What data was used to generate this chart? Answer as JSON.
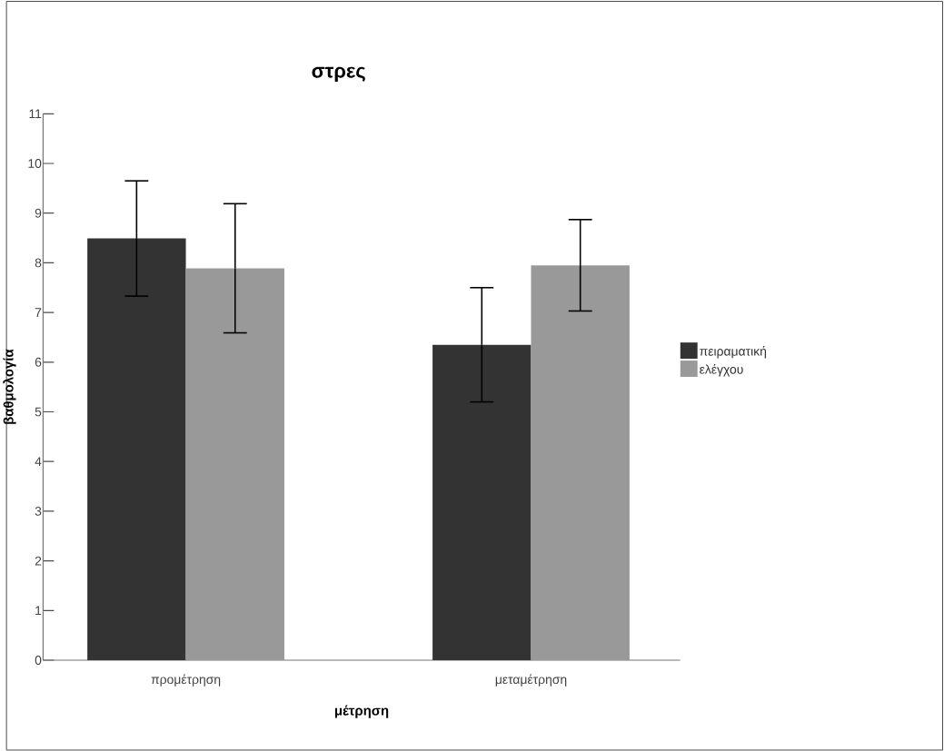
{
  "chart_data": {
    "type": "bar",
    "title": "στρες",
    "xlabel": "μέτρηση",
    "ylabel": "βαθμολογία",
    "categories": [
      "προμέτρηση",
      "μεταμέτρηση"
    ],
    "series": [
      {
        "name": "πειραματική",
        "color": "#333333",
        "values": [
          8.49,
          6.35
        ],
        "errors": [
          1.16,
          1.15
        ]
      },
      {
        "name": "ελέγχου",
        "color": "#999999",
        "values": [
          7.89,
          7.95
        ],
        "errors": [
          1.3,
          0.92
        ]
      }
    ],
    "ylim": [
      0,
      11
    ],
    "yticks": [
      0,
      1,
      2,
      3,
      4,
      5,
      6,
      7,
      8,
      9,
      10,
      11
    ],
    "legend": "right"
  }
}
